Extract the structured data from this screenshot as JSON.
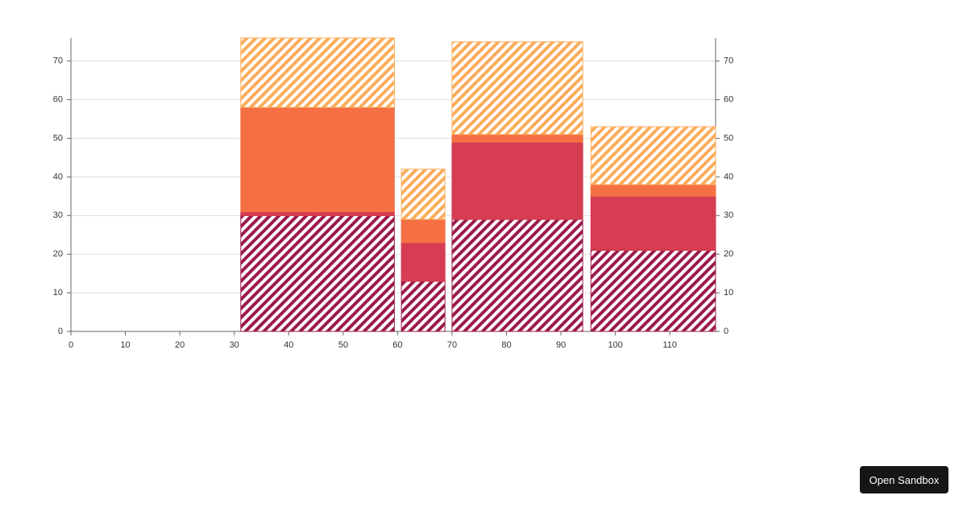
{
  "chart_data": {
    "type": "stacked-bar",
    "x_start": [
      31.2,
      60.7,
      70,
      95.5
    ],
    "x_end": [
      59.4,
      68.7,
      94,
      118.4
    ],
    "series": [
      {
        "color": "#9b1a4b",
        "pattern": "stripes",
        "values": [
          30,
          13,
          29,
          21
        ]
      },
      {
        "color": "#d63c52",
        "pattern": "solid",
        "values": [
          1,
          10,
          20,
          14
        ]
      },
      {
        "color": "#f47044",
        "pattern": "solid",
        "values": [
          27,
          6,
          2,
          3
        ]
      },
      {
        "color": "#fbac5a",
        "pattern": "stripes",
        "values": [
          18,
          13,
          24,
          15
        ]
      }
    ],
    "xlim": [
      0,
      118.4
    ],
    "xticks": [
      0,
      10,
      20,
      30,
      40,
      50,
      60,
      70,
      80,
      90,
      100,
      110
    ],
    "ylim": [
      0,
      76
    ],
    "yticks": [
      0,
      10,
      20,
      30,
      40,
      50,
      60,
      70
    ],
    "y2lim": [
      0,
      76
    ],
    "y2ticks": [
      0,
      10,
      20,
      30,
      40,
      50,
      60,
      70
    ],
    "grid": true
  },
  "button": {
    "label": "Open Sandbox"
  }
}
